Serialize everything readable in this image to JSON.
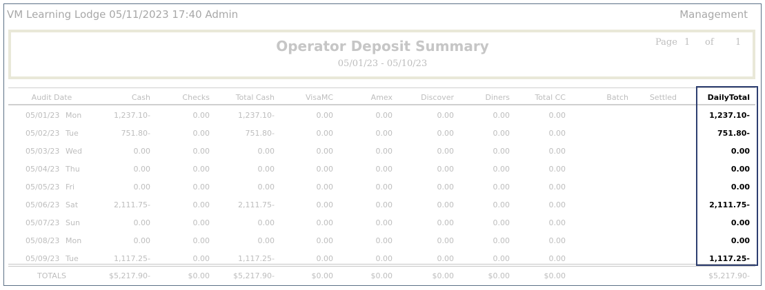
{
  "header": {
    "left": "VM Learning Lodge 05/11/2023 17:40  Admin",
    "right": "Management"
  },
  "report": {
    "title": "Operator Deposit Summary",
    "date_range": "05/01/23 - 05/10/23",
    "page": {
      "label": "Page",
      "current": "1",
      "of": "of",
      "total": "1"
    }
  },
  "table": {
    "columns": [
      "Audit Date",
      "Cash",
      "Checks",
      "Total Cash",
      "VisaMC",
      "Amex",
      "Discover",
      "Diners",
      "Total CC",
      "Batch",
      "Settled",
      "DailyTotal"
    ],
    "rows": [
      [
        "05/01/23",
        "Mon",
        "1,237.10-",
        "0.00",
        "1,237.10-",
        "0.00",
        "0.00",
        "0.00",
        "0.00",
        "0.00",
        "1,237.10-"
      ],
      [
        "05/02/23",
        "Tue",
        "751.80-",
        "0.00",
        "751.80-",
        "0.00",
        "0.00",
        "0.00",
        "0.00",
        "0.00",
        "751.80-"
      ],
      [
        "05/03/23",
        "Wed",
        "0.00",
        "0.00",
        "0.00",
        "0.00",
        "0.00",
        "0.00",
        "0.00",
        "0.00",
        "0.00"
      ],
      [
        "05/04/23",
        "Thu",
        "0.00",
        "0.00",
        "0.00",
        "0.00",
        "0.00",
        "0.00",
        "0.00",
        "0.00",
        "0.00"
      ],
      [
        "05/05/23",
        "Fri",
        "0.00",
        "0.00",
        "0.00",
        "0.00",
        "0.00",
        "0.00",
        "0.00",
        "0.00",
        "0.00"
      ],
      [
        "05/06/23",
        "Sat",
        "2,111.75-",
        "0.00",
        "2,111.75-",
        "0.00",
        "0.00",
        "0.00",
        "0.00",
        "0.00",
        "2,111.75-"
      ],
      [
        "05/07/23",
        "Sun",
        "0.00",
        "0.00",
        "0.00",
        "0.00",
        "0.00",
        "0.00",
        "0.00",
        "0.00",
        "0.00"
      ],
      [
        "05/08/23",
        "Mon",
        "0.00",
        "0.00",
        "0.00",
        "0.00",
        "0.00",
        "0.00",
        "0.00",
        "0.00",
        "0.00"
      ],
      [
        "05/09/23",
        "Tue",
        "1,117.25-",
        "0.00",
        "1,117.25-",
        "0.00",
        "0.00",
        "0.00",
        "0.00",
        "0.00",
        "1,117.25-"
      ]
    ],
    "totals": [
      "TOTALS",
      "$5,217.90-",
      "$0.00",
      "$5,217.90-",
      "$0.00",
      "$0.00",
      "$0.00",
      "$0.00",
      "$0.00",
      "$5,217.90-"
    ]
  }
}
